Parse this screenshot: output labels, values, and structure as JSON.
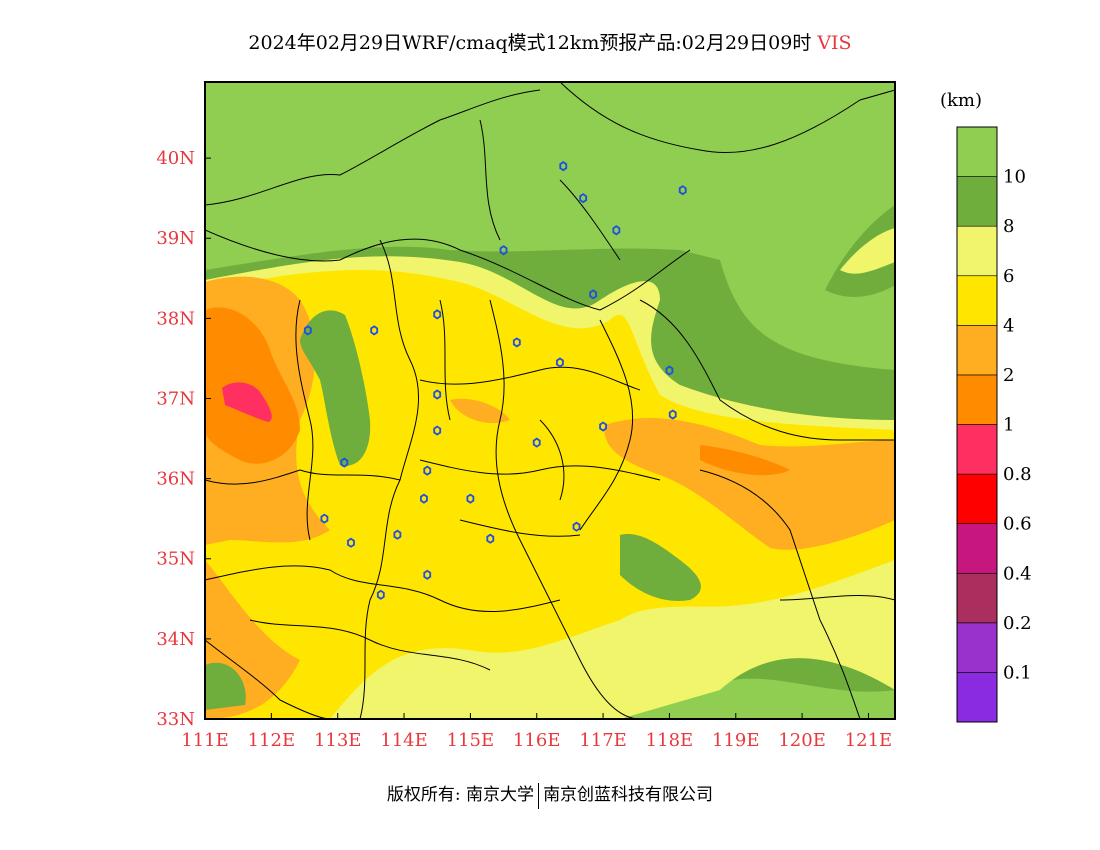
{
  "title": {
    "main": "2024年02月29日WRF/cmaq模式12km预报产品:02月29日09时",
    "variable": "VIS"
  },
  "legend": {
    "unit": "(km)",
    "colors": [
      "#8a2be2",
      "#9932cc",
      "#aa2f5f",
      "#c8167f",
      "#ff0000",
      "#ff3061",
      "#ff8c00",
      "#ffad21",
      "#ffe600",
      "#f0f56b",
      "#6fae3c",
      "#8fce50"
    ],
    "labels": [
      "0.1",
      "0.2",
      "0.4",
      "0.6",
      "0.8",
      "1",
      "2",
      "4",
      "6",
      "8",
      "10"
    ]
  },
  "axes": {
    "x_ticks": [
      "111E",
      "112E",
      "113E",
      "114E",
      "115E",
      "116E",
      "117E",
      "118E",
      "119E",
      "120E",
      "121E"
    ],
    "y_ticks": [
      "33N",
      "34N",
      "35N",
      "36N",
      "37N",
      "38N",
      "39N",
      "40N"
    ],
    "x_range": [
      111,
      121.4
    ],
    "y_range": [
      33,
      40.95
    ]
  },
  "stations": [
    [
      116.4,
      39.9
    ],
    [
      116.7,
      39.5
    ],
    [
      117.2,
      39.1
    ],
    [
      118.2,
      39.6
    ],
    [
      115.5,
      38.85
    ],
    [
      116.85,
      38.3
    ],
    [
      112.55,
      37.85
    ],
    [
      113.55,
      37.85
    ],
    [
      114.5,
      38.05
    ],
    [
      115.7,
      37.7
    ],
    [
      116.35,
      37.45
    ],
    [
      118.0,
      37.35
    ],
    [
      114.5,
      37.05
    ],
    [
      114.5,
      36.6
    ],
    [
      116.0,
      36.45
    ],
    [
      117.0,
      36.65
    ],
    [
      118.05,
      36.8
    ],
    [
      113.1,
      36.2
    ],
    [
      114.35,
      36.1
    ],
    [
      114.3,
      35.75
    ],
    [
      115.0,
      35.75
    ],
    [
      112.8,
      35.5
    ],
    [
      113.9,
      35.3
    ],
    [
      113.2,
      35.2
    ],
    [
      115.3,
      35.25
    ],
    [
      116.6,
      35.4
    ],
    [
      114.35,
      34.8
    ],
    [
      113.65,
      34.55
    ]
  ],
  "footer": {
    "left": "版权所有: 南京大学",
    "right": "南京创蓝科技有限公司"
  }
}
